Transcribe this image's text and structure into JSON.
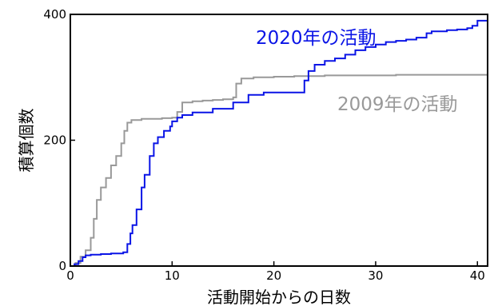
{
  "chart_data": {
    "type": "line",
    "title": "",
    "xlabel": "活動開始からの日数",
    "ylabel": "積算個数",
    "xlim": [
      0,
      41
    ],
    "ylim": [
      0,
      400
    ],
    "x_ticks": [
      0,
      10,
      20,
      30,
      40
    ],
    "y_ticks": [
      0,
      200,
      400
    ],
    "grid": false,
    "series": [
      {
        "name": "2020年の活動",
        "color": "#0a14e6",
        "x": [
          0,
          0.4,
          0.8,
          1.2,
          1.5,
          2,
          3,
          4,
          5.2,
          5.6,
          5.9,
          6.1,
          6.5,
          7,
          7.3,
          7.8,
          8.2,
          8.6,
          9.2,
          9.8,
          10,
          10.5,
          11,
          12,
          14,
          16,
          17.5,
          19,
          20,
          21,
          22.6,
          23.0,
          23.4,
          24,
          25,
          26,
          27,
          28,
          29,
          30,
          31,
          32,
          33,
          34,
          35,
          35.5,
          37,
          38,
          39,
          39.5,
          40,
          41
        ],
        "y": [
          0,
          3,
          8,
          14,
          17,
          18,
          19,
          20,
          22,
          35,
          52,
          65,
          90,
          125,
          145,
          175,
          195,
          205,
          215,
          222,
          230,
          236,
          240,
          244,
          250,
          260,
          272,
          276,
          276,
          276,
          276,
          295,
          310,
          320,
          326,
          330,
          336,
          343,
          348,
          352,
          356,
          358,
          360,
          363,
          370,
          373,
          375,
          376,
          378,
          382,
          390,
          390
        ]
      },
      {
        "name": "2009年の活動",
        "color": "#999999",
        "x": [
          0,
          0.5,
          1,
          1.5,
          2,
          2.3,
          2.6,
          3,
          3.5,
          4,
          4.5,
          5,
          5.3,
          5.6,
          6,
          7,
          8,
          9,
          10,
          10.5,
          11,
          12,
          13,
          14,
          15,
          16,
          16.3,
          16.8,
          18,
          20,
          22,
          25,
          28,
          32,
          36,
          41
        ],
        "y": [
          0,
          5,
          15,
          25,
          45,
          75,
          105,
          125,
          140,
          160,
          175,
          195,
          215,
          228,
          232,
          234,
          234,
          235,
          236,
          245,
          260,
          262,
          263,
          264,
          265,
          268,
          290,
          298,
          300,
          301,
          302,
          303,
          303,
          304,
          304,
          304
        ]
      }
    ]
  }
}
